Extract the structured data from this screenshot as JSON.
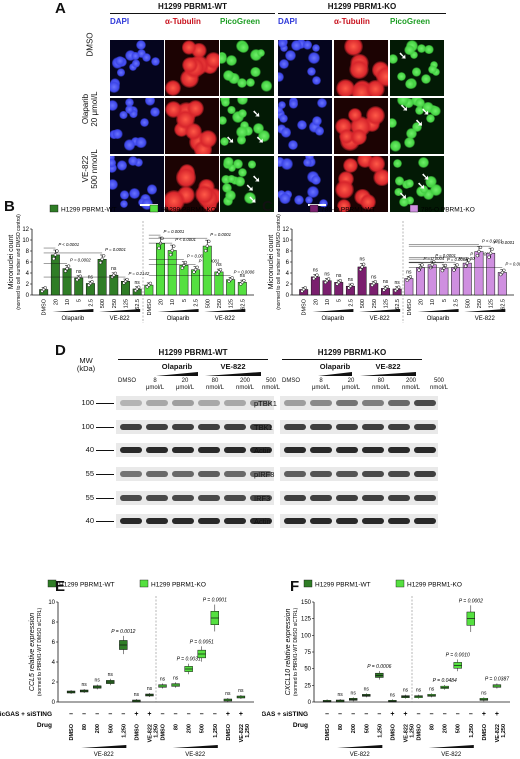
{
  "panelA": {
    "letter": "A",
    "group_wt": "H1299 PBRM1-WT",
    "group_ko": "H1299 PBRM1-KO",
    "channels": [
      "DAPI",
      "α-Tubulin",
      "PicoGreen"
    ],
    "rows": [
      {
        "label_l1": "DMSO",
        "label_l2": ""
      },
      {
        "label_l1": "Olaparib",
        "label_l2": "20 μmol/L"
      },
      {
        "label_l1": "VE-822",
        "label_l2": "500 nmol/L"
      }
    ]
  },
  "panelB": {
    "letter": "B",
    "legend": [
      "H1299 PBRM1-WT",
      "H1299 PBRM1-KO"
    ],
    "colors": [
      "#2f7d26",
      "#55e040"
    ],
    "chart_data": {
      "type": "bar",
      "ylabel": "Micronuclei count",
      "ylabel2": "(normed to cell number and DMSO control)",
      "ylim": [
        0,
        12
      ],
      "yticks": [
        0,
        2,
        4,
        6,
        8,
        10,
        12
      ],
      "categories": [
        "DMSO",
        "20",
        "10",
        "5",
        "2.5",
        "500",
        "250",
        "125",
        "62.5",
        "DMSO",
        "20",
        "10",
        "5",
        "2.5",
        "500",
        "250",
        "125",
        "62.5"
      ],
      "values": [
        1,
        7.3,
        4.8,
        3.1,
        2.1,
        6.5,
        3.6,
        2.5,
        1.1,
        1.8,
        9.4,
        8.1,
        5.4,
        4.6,
        8.9,
        4.2,
        2.8,
        2.3
      ],
      "series_index": [
        0,
        0,
        0,
        0,
        0,
        0,
        0,
        0,
        0,
        1,
        1,
        1,
        1,
        1,
        1,
        1,
        1,
        1
      ],
      "annotations": [
        "",
        "P < 0.0001",
        "P = 0.0002",
        "ns",
        "ns",
        "P = 0.0001",
        "ns",
        "P = 0.2142",
        "ns",
        "",
        "P = 0.0001",
        "P < 0.0001",
        "P = 0.0001",
        "P = 0.0001",
        "P = 0.0001",
        "ns",
        "P = 0.0006",
        "ns"
      ],
      "drug_groups": [
        "Olaparib",
        "VE-822",
        "Olaparib",
        "VE-822"
      ]
    }
  },
  "panelC": {
    "letter": "C",
    "legend": [
      "786-O PBRM1-WT",
      "786-O PBRM1-KO"
    ],
    "colors": [
      "#7a1f6e",
      "#cf8fe0"
    ],
    "chart_data": {
      "type": "bar",
      "ylabel": "Micronuclei count",
      "ylabel2": "(normed to cell number and DMSO control)",
      "ylim": [
        0,
        12
      ],
      "yticks": [
        0,
        2,
        4,
        6,
        8,
        10,
        12
      ],
      "categories": [
        "DMSO",
        "20",
        "10",
        "5",
        "2.5",
        "500",
        "250",
        "125",
        "62.5",
        "DMSO",
        "20",
        "10",
        "5",
        "2.5",
        "500",
        "250",
        "125",
        "62.5"
      ],
      "values": [
        1,
        3.3,
        2.6,
        2.3,
        1.6,
        5.1,
        2.1,
        1.2,
        1.1,
        3.0,
        5.0,
        5.5,
        4.9,
        5.0,
        5.8,
        7.9,
        7.6,
        4.1
      ],
      "series_index": [
        0,
        0,
        0,
        0,
        0,
        0,
        0,
        0,
        0,
        1,
        1,
        1,
        1,
        1,
        1,
        1,
        1,
        1
      ],
      "annotations": [
        "",
        "ns",
        "ns",
        "ns",
        "ns",
        "ns",
        "ns",
        "ns",
        "ns",
        "ns",
        "P = 0.0004",
        "P = 0.0001",
        "P = 0.0002",
        "P = 0.0002",
        "P = 0.0001",
        "P < 0.0001",
        "P = 0.0001",
        "P = 0.0002"
      ],
      "drug_groups": [
        "Olaparib",
        "VE-822",
        "Olaparib",
        "VE-822"
      ]
    }
  },
  "panelD": {
    "letter": "D",
    "mw_label": "MW",
    "mw_unit": "(kDa)",
    "group_wt": "H1299 PBRM1-WT",
    "group_ko": "H1299 PBRM1-KO",
    "drug_olaparib": "Olaparib",
    "drug_ve822": "VE-822",
    "lanes": [
      {
        "l1": "DMSO",
        "l2": ""
      },
      {
        "l1": "8",
        "l2": "μmol/L"
      },
      {
        "l1": "20",
        "l2": "μmol/L"
      },
      {
        "l1": "80",
        "l2": "nmol/L"
      },
      {
        "l1": "200",
        "l2": "nmol/L"
      },
      {
        "l1": "500",
        "l2": "nmol/L"
      }
    ],
    "blots": [
      {
        "mw": "100",
        "name": "pTBK1"
      },
      {
        "mw": "100",
        "name": "TBK1"
      },
      {
        "mw": "40",
        "name": "Actin"
      },
      {
        "mw": "55",
        "name": "pIRF3"
      },
      {
        "mw": "55",
        "name": "IRF3"
      },
      {
        "mw": "40",
        "name": "Actin"
      }
    ]
  },
  "panelE": {
    "letter": "E",
    "legend": [
      "H1299 PBRM1-WT",
      "H1299 PBRM1-KO"
    ],
    "colors": [
      "#2f7d26",
      "#55e040"
    ],
    "chart_data": {
      "type": "box",
      "ylabel": "CCL5 relative expression",
      "ylabel2": "(normed to PBRM1-WT DMSO siCTRL)",
      "ylim": [
        0,
        10
      ],
      "yticks": [
        0,
        2,
        4,
        6,
        8,
        10
      ],
      "categories": [
        "DMSO",
        "80",
        "200",
        "500",
        "1,250",
        "DMSO",
        "VE-822 1,250",
        "DMSO",
        "80",
        "200",
        "500",
        "1,250",
        "DMSO",
        "VE-822 1,250"
      ],
      "medians": [
        1,
        1.1,
        1.5,
        2.0,
        5.7,
        0.1,
        0.7,
        1.6,
        1.7,
        3.3,
        4.8,
        8.4,
        0.2,
        0.5
      ],
      "series_index": [
        0,
        0,
        0,
        0,
        0,
        0,
        0,
        1,
        1,
        1,
        1,
        1,
        1,
        1
      ],
      "annotations": [
        "",
        "ns",
        "ns",
        "ns",
        "P = 0.0012",
        "ns",
        "ns",
        "ns",
        "ns",
        "P = 0.0031",
        "P = 0.0051",
        "P = 0.0001",
        "ns",
        "ns"
      ],
      "sicgas_row": [
        "–",
        "–",
        "–",
        "–",
        "–",
        "+",
        "+",
        "–",
        "–",
        "–",
        "–",
        "–",
        "+",
        "+"
      ],
      "row_label": "sicGAS + siSTING",
      "drug_label": "Drug",
      "drug_group": "VE-822"
    }
  },
  "panelF": {
    "letter": "F",
    "legend": [
      "H1299 PBRM1-WT",
      "H1299 PBRM1-KO"
    ],
    "colors": [
      "#2f7d26",
      "#55e040"
    ],
    "chart_data": {
      "type": "box",
      "ylabel": "CXCL10 relative expression",
      "ylabel2": "(normed to PBRM1-WT DMSO siCTRL)",
      "ylim": [
        0,
        150
      ],
      "yticks": [
        0,
        25,
        50,
        75,
        100,
        125,
        150
      ],
      "categories": [
        "DMSO",
        "80",
        "200",
        "500",
        "1,250",
        "DMSO",
        "VE-822 1,250",
        "DMSO",
        "80",
        "200",
        "500",
        "1,250",
        "DMSO",
        "VE-822 1,250"
      ],
      "medians": [
        1,
        1.5,
        4,
        10,
        40,
        1,
        8,
        8,
        10,
        22,
        55,
        125,
        4,
        24
      ],
      "series_index": [
        0,
        0,
        0,
        0,
        0,
        0,
        0,
        1,
        1,
        1,
        1,
        1,
        1,
        1
      ],
      "annotations": [
        "",
        "ns",
        "ns",
        "ns",
        "P = 0.0006",
        "ns",
        "ns",
        "ns",
        "ns",
        "P = 0.0484",
        "P = 0.0010",
        "P = 0.0002",
        "ns",
        "P = 0.0387"
      ],
      "sicgas_row": [
        "–",
        "–",
        "–",
        "–",
        "–",
        "+",
        "+",
        "–",
        "–",
        "–",
        "–",
        "–",
        "+",
        "+"
      ],
      "row_label": "sicGAS + siSTING",
      "drug_label": "Drug",
      "drug_group": "VE-822"
    }
  }
}
